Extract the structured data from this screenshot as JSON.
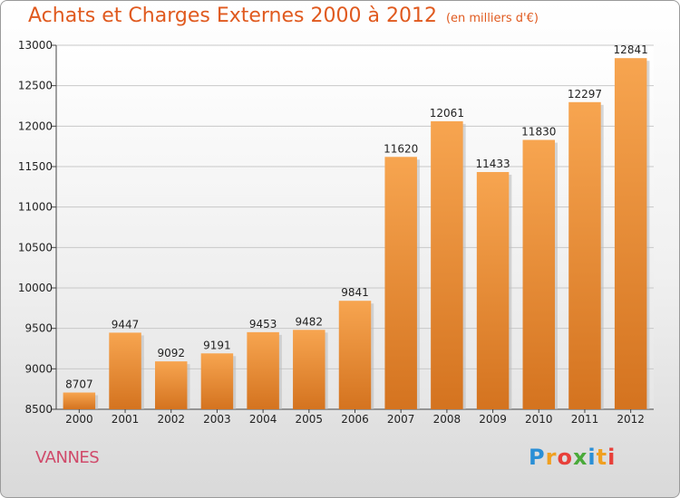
{
  "header": {
    "title": "Achats et Charges Externes 2000 à 2012",
    "subtitle": "(en milliers d'€)"
  },
  "footer": {
    "city": "VANNES",
    "logo_text": "Proxiti"
  },
  "colors": {
    "bar_top": "#f7a550",
    "bar_bottom": "#d4731f",
    "title": "#e05a1f",
    "city": "#d04a6a"
  },
  "chart_data": {
    "type": "bar",
    "title": "Achats et Charges Externes 2000 à 2012",
    "xlabel": "",
    "ylabel": "",
    "categories": [
      "2000",
      "2001",
      "2002",
      "2003",
      "2004",
      "2005",
      "2006",
      "2007",
      "2008",
      "2009",
      "2010",
      "2011",
      "2012"
    ],
    "values": [
      8707,
      9447,
      9092,
      9191,
      9453,
      9482,
      9841,
      11620,
      12061,
      11433,
      11830,
      12297,
      12841
    ],
    "ylim": [
      8500,
      13000
    ],
    "yticks": [
      8500,
      9000,
      9500,
      10000,
      10500,
      11000,
      11500,
      12000,
      12500,
      13000
    ],
    "grid": true,
    "legend": "none"
  }
}
